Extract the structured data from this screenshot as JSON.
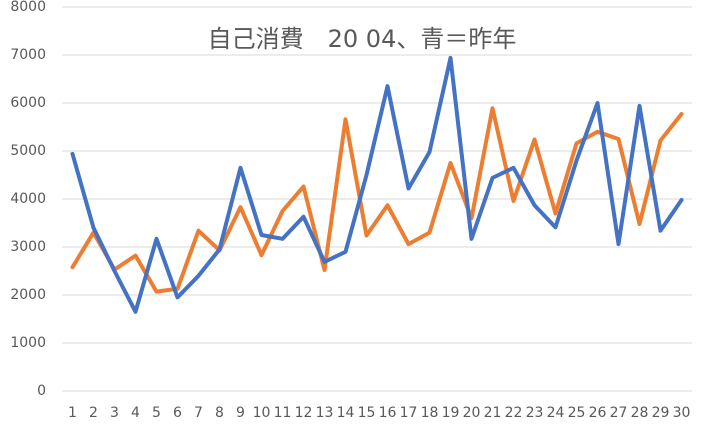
{
  "chart_data": {
    "type": "line",
    "title": "自己消費　20 04、青＝昨年",
    "categories": [
      "1",
      "2",
      "3",
      "4",
      "5",
      "6",
      "7",
      "8",
      "9",
      "10",
      "11",
      "12",
      "13",
      "14",
      "15",
      "16",
      "17",
      "18",
      "19",
      "20",
      "21",
      "22",
      "23",
      "24",
      "25",
      "26",
      "27",
      "28",
      "29",
      "30"
    ],
    "series": [
      {
        "color": "#4472c4",
        "values": [
          4940,
          3400,
          2500,
          1650,
          3170,
          1950,
          2400,
          2950,
          4650,
          3250,
          3170,
          3630,
          2690,
          2900,
          4500,
          6350,
          4220,
          4980,
          6940,
          3170,
          4440,
          4650,
          3870,
          3410,
          4800,
          6000,
          3060,
          5940,
          3340,
          3980
        ]
      },
      {
        "color": "#ed7d31",
        "values": [
          2580,
          3300,
          2530,
          2820,
          2070,
          2130,
          3340,
          2930,
          3830,
          2830,
          3750,
          4260,
          2520,
          5660,
          3240,
          3870,
          3060,
          3300,
          4750,
          3600,
          5890,
          3960,
          5240,
          3700,
          5160,
          5400,
          5250,
          3480,
          5220,
          5770
        ]
      }
    ],
    "ylim": [
      0,
      8000
    ],
    "yticks": [
      0,
      1000,
      2000,
      3000,
      4000,
      5000,
      6000,
      7000,
      8000
    ],
    "grid": true
  }
}
